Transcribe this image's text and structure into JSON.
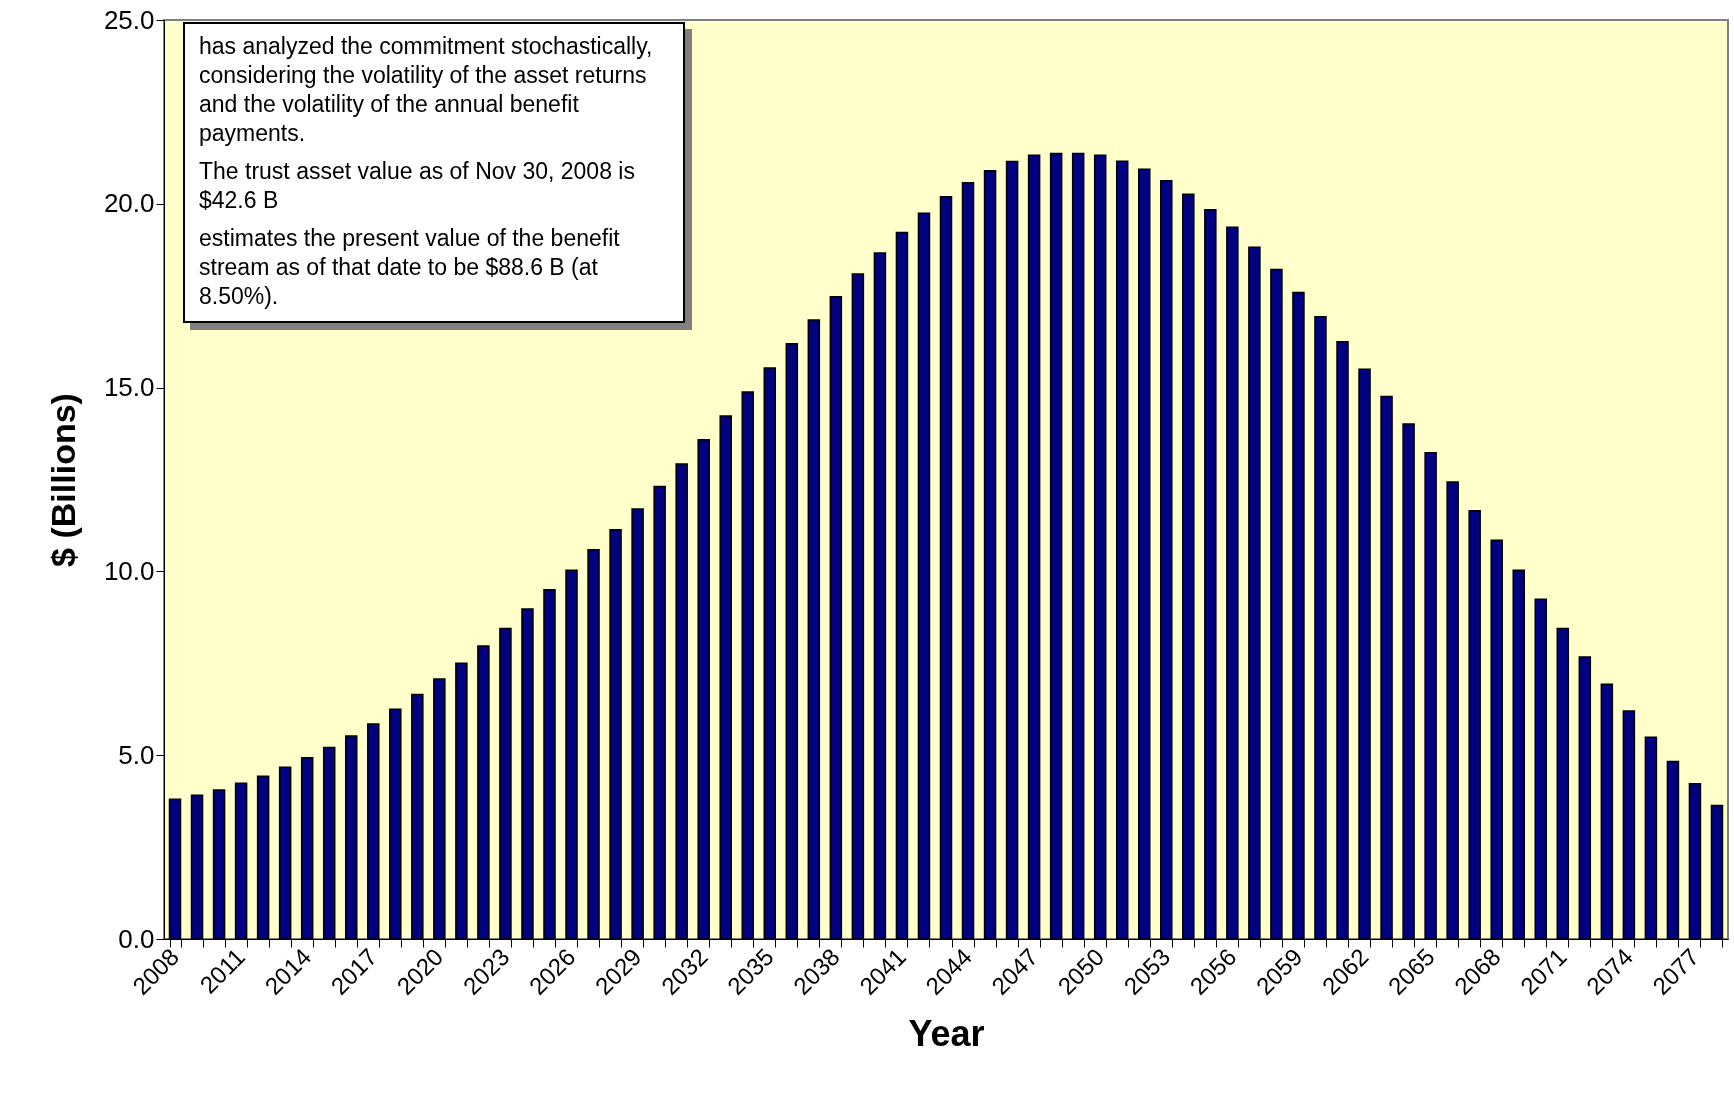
{
  "chart_data": {
    "type": "bar",
    "xlabel": "Year",
    "ylabel": "$ (Billions)",
    "categories": [
      "2008",
      null,
      null,
      "2011",
      null,
      null,
      "2014",
      null,
      null,
      "2017",
      null,
      null,
      "2020",
      null,
      null,
      "2023",
      null,
      null,
      "2026",
      null,
      null,
      "2029",
      null,
      null,
      "2032",
      null,
      null,
      "2035",
      null,
      null,
      "2038",
      null,
      null,
      "2041",
      null,
      null,
      "2044",
      null,
      null,
      "2047",
      null,
      null,
      "2050",
      null,
      null,
      "2053",
      null,
      null,
      "2056",
      null,
      null,
      "2059",
      null,
      null,
      "2062",
      null,
      null,
      "2065",
      null,
      null,
      "2068",
      null,
      null,
      "2071",
      null,
      null,
      "2074",
      null,
      null,
      "2077",
      null
    ],
    "values": [
      3.8,
      3.91,
      4.05,
      4.24,
      4.43,
      4.67,
      4.93,
      5.21,
      5.52,
      5.85,
      6.25,
      6.65,
      7.07,
      7.5,
      7.97,
      8.45,
      8.98,
      9.5,
      10.03,
      10.59,
      11.13,
      11.7,
      12.31,
      12.92,
      13.58,
      14.23,
      14.88,
      15.53,
      16.19,
      16.84,
      17.47,
      18.09,
      18.66,
      19.22,
      19.74,
      20.19,
      20.57,
      20.9,
      21.15,
      21.32,
      21.37,
      21.37,
      21.32,
      21.16,
      20.94,
      20.63,
      20.26,
      19.84,
      19.36,
      18.82,
      18.21,
      17.59,
      16.93,
      16.25,
      15.5,
      14.76,
      14.01,
      13.23,
      12.43,
      11.65,
      10.85,
      10.03,
      9.24,
      8.45,
      7.67,
      6.93,
      6.2,
      5.49,
      4.83,
      4.22,
      3.63
    ],
    "color": "#000080",
    "ylim": [
      0,
      25
    ],
    "yticks": [
      {
        "value": 0,
        "label": "0.0"
      },
      {
        "value": 5,
        "label": "5.0"
      },
      {
        "value": 10,
        "label": "10.0"
      },
      {
        "value": 15,
        "label": "15.0"
      },
      {
        "value": 20,
        "label": "20.0"
      },
      {
        "value": 25,
        "label": "25.0"
      }
    ],
    "grid": false,
    "annotations": [
      "has analyzed the commitment stochastically, considering the volatility of the asset returns and the volatility of the annual benefit payments.",
      "The trust asset value as of Nov 30, 2008 is $42.6 B",
      "estimates the present value of the benefit stream as of that date to be $88.6 B (at 8.50%)."
    ]
  }
}
